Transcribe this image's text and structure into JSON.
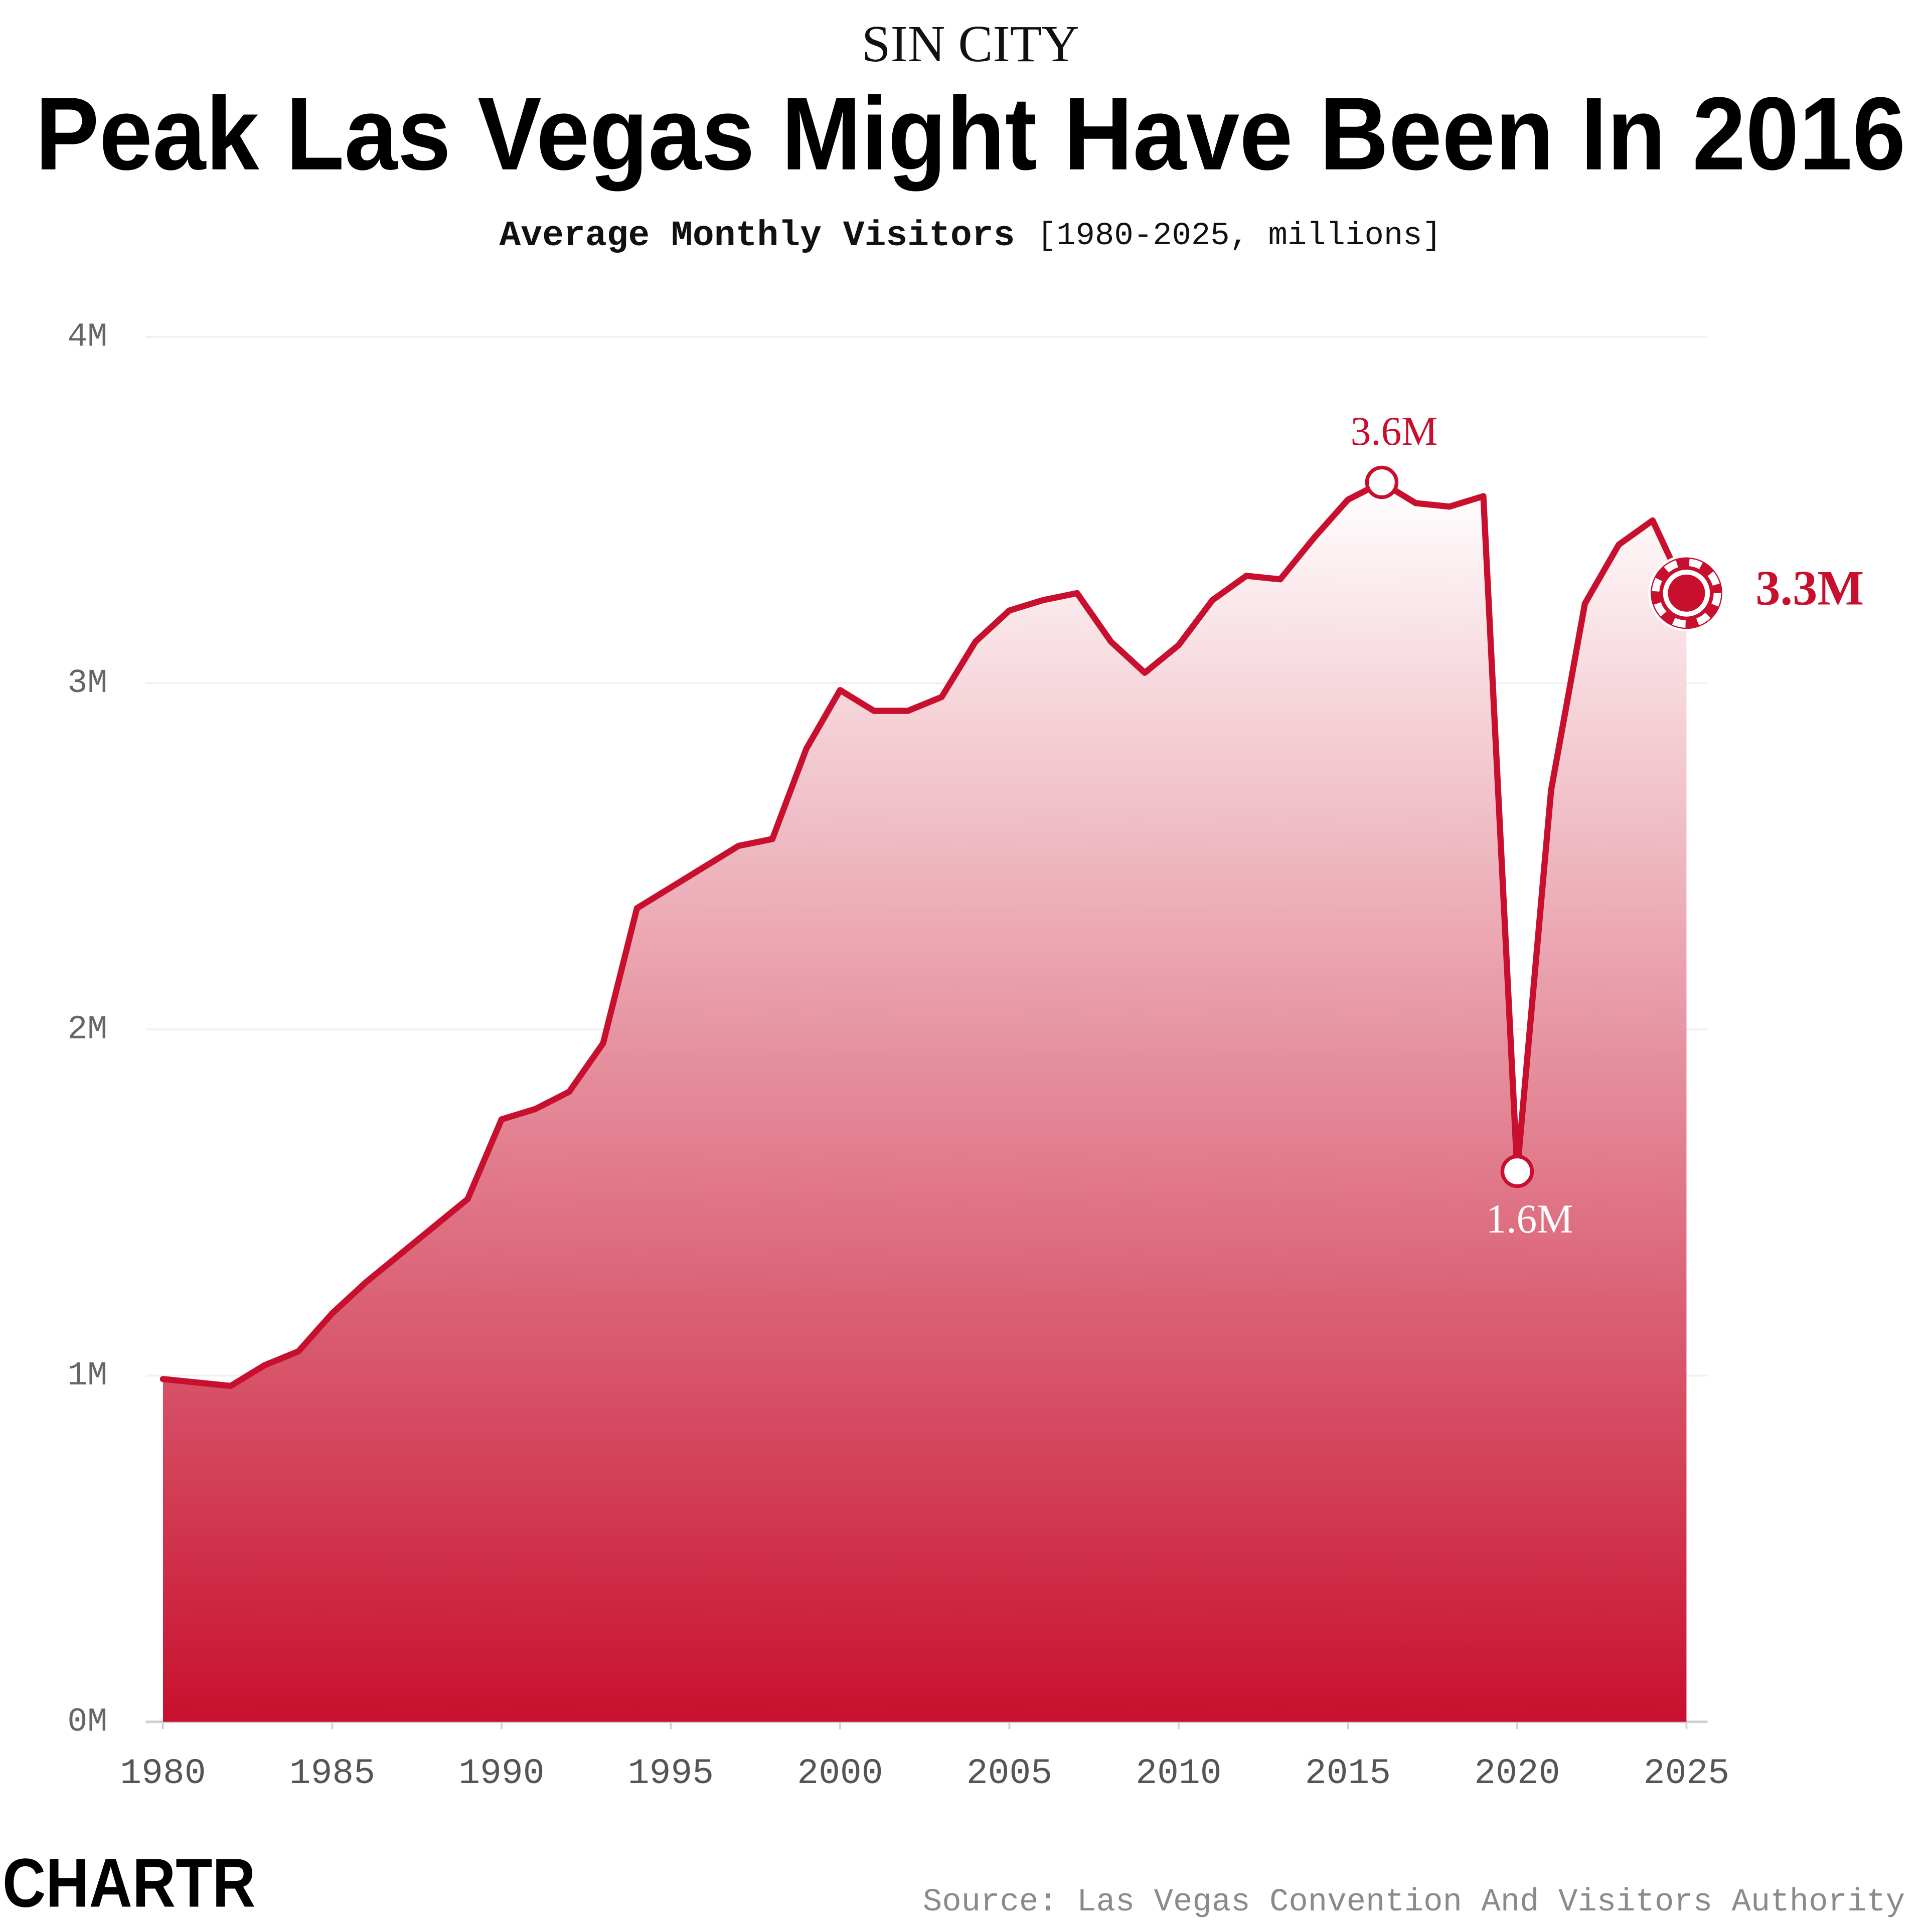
{
  "chart_data": {
    "type": "area",
    "kicker": "SIN CITY",
    "title": "Peak Las Vegas Might Have Been In 2016",
    "subtitle": "Average Monthly Visitors",
    "subtitle_note": "[1980-2025, millions]",
    "source": "Source: Las Vegas Convention And Visitors Authority",
    "logo": "CHARTR",
    "color": "#c8102e",
    "x": [
      1980,
      1981,
      1982,
      1983,
      1984,
      1985,
      1986,
      1987,
      1988,
      1989,
      1990,
      1991,
      1992,
      1993,
      1994,
      1995,
      1996,
      1997,
      1998,
      1999,
      2000,
      2001,
      2002,
      2003,
      2004,
      2005,
      2006,
      2007,
      2008,
      2009,
      2010,
      2011,
      2012,
      2013,
      2014,
      2015,
      2016,
      2017,
      2018,
      2019,
      2020,
      2021,
      2022,
      2023,
      2024,
      2025
    ],
    "values": [
      0.99,
      0.98,
      0.97,
      1.03,
      1.07,
      1.18,
      1.27,
      1.35,
      1.43,
      1.51,
      1.74,
      1.77,
      1.82,
      1.96,
      2.35,
      2.41,
      2.47,
      2.53,
      2.55,
      2.81,
      2.98,
      2.92,
      2.92,
      2.96,
      3.12,
      3.21,
      3.24,
      3.26,
      3.12,
      3.03,
      3.11,
      3.24,
      3.31,
      3.3,
      3.42,
      3.53,
      3.58,
      3.52,
      3.51,
      3.54,
      1.59,
      2.69,
      3.23,
      3.4,
      3.47,
      3.26
    ],
    "value_labels": [
      null,
      null,
      null,
      null,
      null,
      null,
      null,
      null,
      null,
      null,
      null,
      null,
      null,
      null,
      null,
      null,
      null,
      null,
      null,
      null,
      null,
      null,
      null,
      null,
      null,
      null,
      null,
      null,
      null,
      null,
      null,
      null,
      null,
      null,
      null,
      null,
      "3.6M",
      null,
      null,
      null,
      "1.6M",
      null,
      null,
      null,
      null,
      "3.3M"
    ],
    "xlim": [
      1980,
      2025
    ],
    "xticks": [
      1980,
      1985,
      1990,
      1995,
      2000,
      2005,
      2010,
      2015,
      2020,
      2025
    ],
    "ylim": [
      0,
      4
    ],
    "yticks": [
      {
        "value": 0,
        "label": "0M"
      },
      {
        "value": 1,
        "label": "1M"
      },
      {
        "value": 2,
        "label": "2M"
      },
      {
        "value": 3,
        "label": "3M"
      },
      {
        "value": 4,
        "label": "4M"
      }
    ],
    "grid": true
  }
}
